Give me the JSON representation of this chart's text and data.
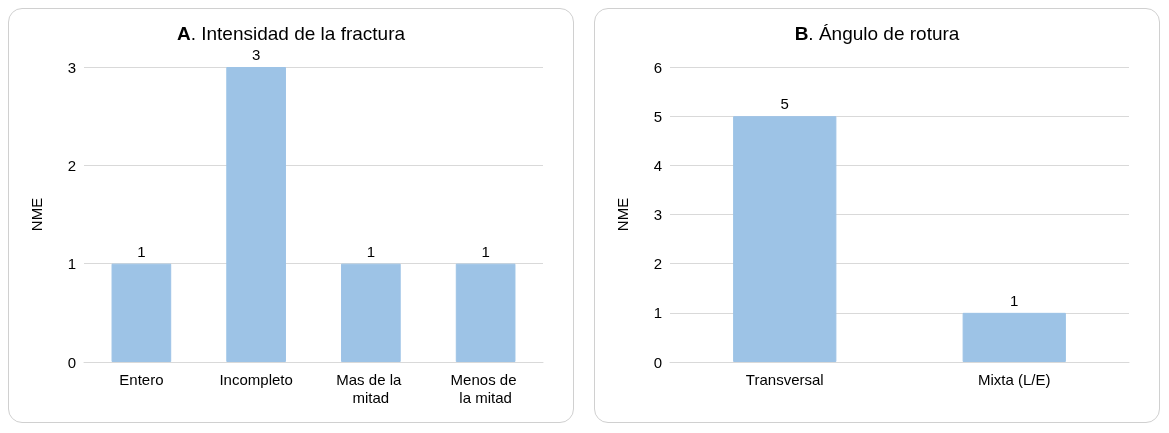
{
  "chart_data": [
    {
      "type": "bar",
      "title": "A. Intensidad de la fractura",
      "ylabel": "NME",
      "categories": [
        "Entero",
        "Incompleto",
        "Mas de la mitad",
        "Menos de la mitad"
      ],
      "values": [
        1,
        3,
        1,
        1
      ],
      "color": "#9dc3e6",
      "ylim": [
        0,
        3
      ],
      "yticks": [
        0,
        1,
        2,
        3
      ],
      "grid": "y",
      "data_labels": true
    },
    {
      "type": "bar",
      "title": "B. Ángulo de rotura",
      "ylabel": "NME",
      "categories": [
        "Transversal",
        "Mixta (L/E)"
      ],
      "values": [
        5,
        1
      ],
      "color": "#9dc3e6",
      "ylim": [
        0,
        6
      ],
      "yticks": [
        0,
        1,
        2,
        3,
        4,
        5,
        6
      ],
      "grid": "y",
      "data_labels": true
    }
  ]
}
